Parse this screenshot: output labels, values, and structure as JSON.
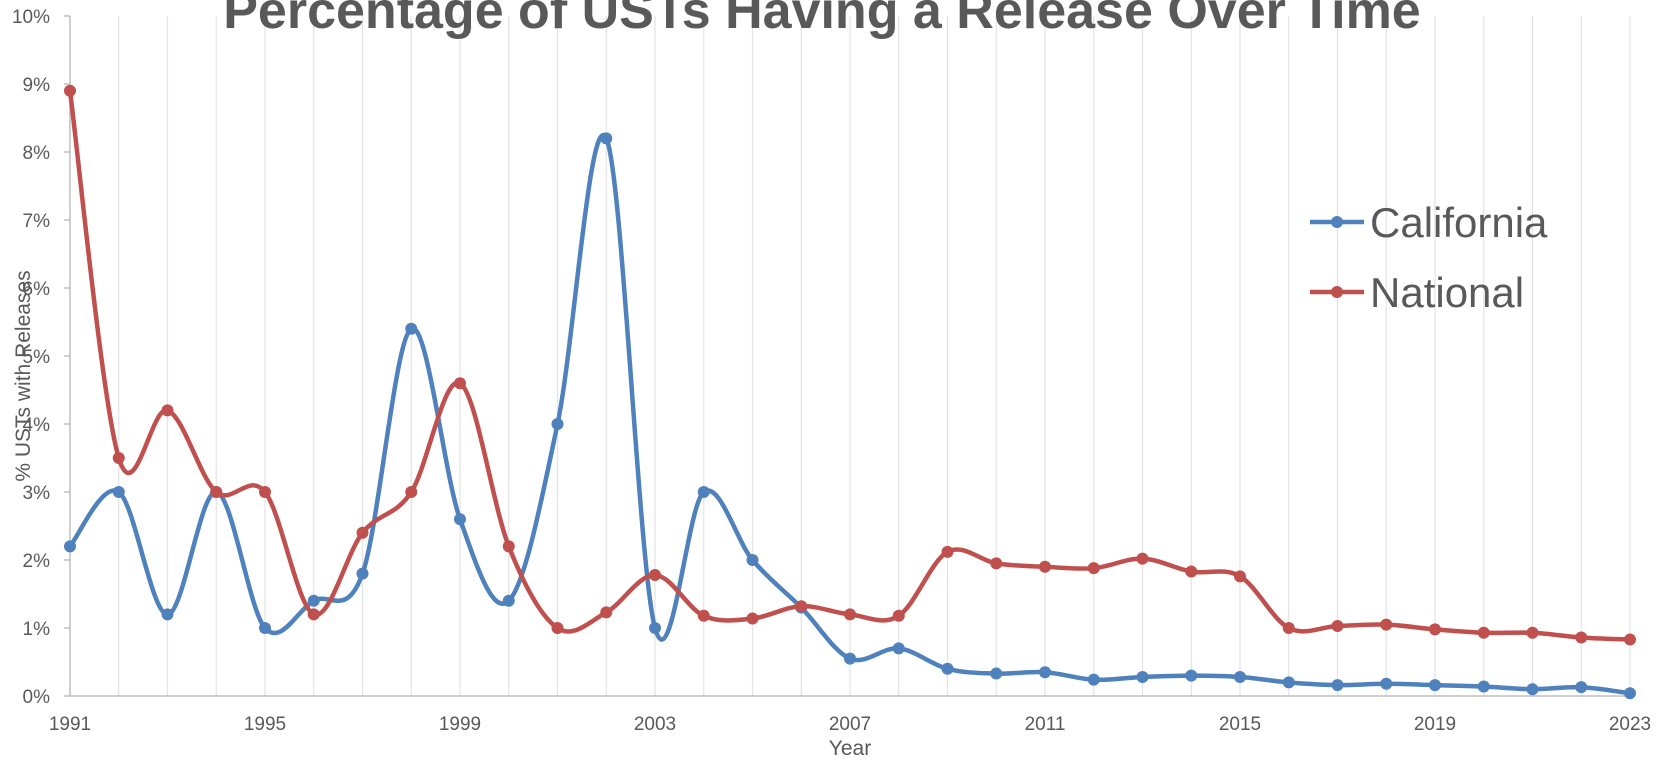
{
  "chart_data": {
    "type": "line",
    "title": "Percentage of USTs Having a Release Over Time",
    "xlabel": "Year",
    "ylabel": "% USTs with Releases",
    "x": [
      1991,
      1992,
      1993,
      1994,
      1995,
      1996,
      1997,
      1998,
      1999,
      2000,
      2001,
      2002,
      2003,
      2004,
      2005,
      2006,
      2007,
      2008,
      2009,
      2010,
      2011,
      2012,
      2013,
      2014,
      2015,
      2016,
      2017,
      2018,
      2019,
      2020,
      2021,
      2022,
      2023
    ],
    "xticks": [
      "1991",
      "1995",
      "1999",
      "2003",
      "2007",
      "2011",
      "2015",
      "2019",
      "2023"
    ],
    "xlim": [
      1991,
      2023
    ],
    "ylim": [
      0,
      10
    ],
    "yticks": [
      "0%",
      "1%",
      "2%",
      "3%",
      "4%",
      "5%",
      "6%",
      "7%",
      "8%",
      "9%",
      "10%"
    ],
    "grid": "vertical",
    "legend_position": "right",
    "series": [
      {
        "name": "California",
        "color": "#4F81BD",
        "values": [
          2.2,
          3.0,
          1.2,
          3.0,
          1.0,
          1.4,
          1.8,
          5.4,
          2.6,
          1.4,
          4.0,
          8.2,
          1.0,
          3.0,
          2.0,
          1.3,
          0.55,
          0.7,
          0.4,
          0.33,
          0.35,
          0.24,
          0.28,
          0.3,
          0.28,
          0.2,
          0.16,
          0.18,
          0.16,
          0.14,
          0.1,
          0.13,
          0.04
        ]
      },
      {
        "name": "National",
        "color": "#C0504D",
        "values": [
          8.9,
          3.5,
          4.2,
          3.0,
          3.0,
          1.2,
          2.4,
          3.0,
          4.6,
          2.2,
          1.0,
          1.23,
          1.78,
          1.18,
          1.14,
          1.32,
          1.2,
          1.18,
          2.12,
          1.95,
          1.9,
          1.88,
          2.02,
          1.83,
          1.76,
          1.0,
          1.03,
          1.05,
          0.98,
          0.93,
          0.93,
          0.86,
          0.83
        ]
      }
    ]
  }
}
